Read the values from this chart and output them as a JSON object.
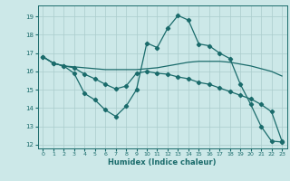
{
  "xlabel": "Humidex (Indice chaleur)",
  "bg_color": "#cce8e8",
  "grid_color": "#aacccc",
  "line_color": "#1a6b6b",
  "xlim": [
    -0.5,
    23.5
  ],
  "ylim": [
    11.8,
    19.6
  ],
  "yticks": [
    12,
    13,
    14,
    15,
    16,
    17,
    18,
    19
  ],
  "xticks": [
    0,
    1,
    2,
    3,
    4,
    5,
    6,
    7,
    8,
    9,
    10,
    11,
    12,
    13,
    14,
    15,
    16,
    17,
    18,
    19,
    20,
    21,
    22,
    23
  ],
  "line1_x": [
    0,
    1,
    2,
    3,
    4,
    5,
    6,
    7,
    8,
    9,
    10,
    11,
    12,
    13,
    14,
    15,
    16,
    17,
    18,
    19,
    20,
    21,
    22,
    23
  ],
  "line1_y": [
    16.8,
    16.45,
    16.3,
    16.25,
    16.2,
    16.15,
    16.1,
    16.1,
    16.1,
    16.1,
    16.15,
    16.2,
    16.3,
    16.4,
    16.5,
    16.55,
    16.55,
    16.55,
    16.5,
    16.4,
    16.3,
    16.15,
    16.0,
    15.75
  ],
  "line2_x": [
    0,
    1,
    2,
    3,
    4,
    5,
    6,
    7,
    8,
    9,
    10,
    11,
    12,
    13,
    14,
    15,
    16,
    17,
    18,
    19,
    20,
    21,
    22,
    23
  ],
  "line2_y": [
    16.8,
    16.45,
    16.3,
    15.9,
    14.8,
    14.45,
    13.9,
    13.55,
    14.1,
    15.0,
    17.55,
    17.3,
    18.35,
    19.05,
    18.8,
    17.5,
    17.4,
    17.0,
    16.7,
    15.3,
    14.2,
    13.0,
    12.2,
    12.15
  ],
  "line3_x": [
    0,
    1,
    2,
    3,
    4,
    5,
    6,
    7,
    8,
    9,
    10,
    11,
    12,
    13,
    14,
    15,
    16,
    17,
    18,
    19,
    20,
    21,
    22,
    23
  ],
  "line3_y": [
    16.8,
    16.45,
    16.3,
    16.2,
    15.85,
    15.6,
    15.3,
    15.05,
    15.2,
    15.9,
    16.0,
    15.9,
    15.85,
    15.7,
    15.6,
    15.4,
    15.3,
    15.1,
    14.9,
    14.7,
    14.5,
    14.2,
    13.8,
    12.2
  ]
}
